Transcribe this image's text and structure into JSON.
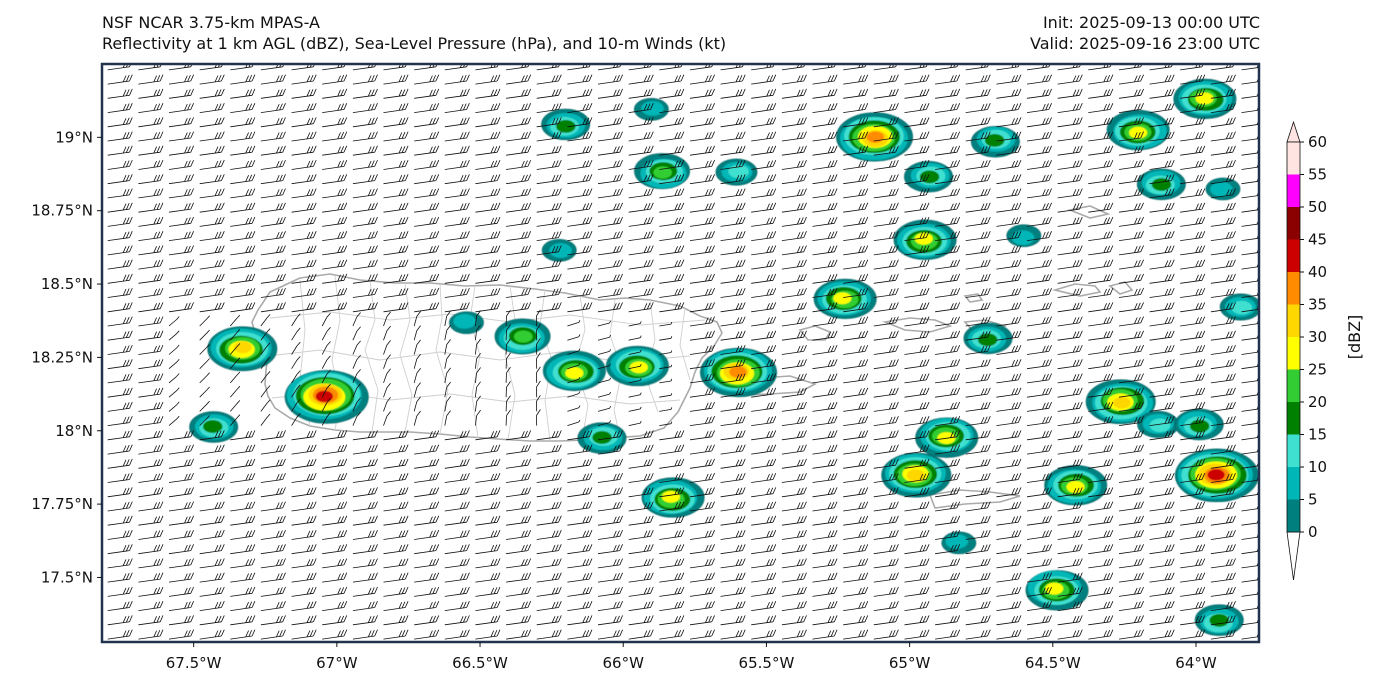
{
  "header": {
    "left_line1": "NSF NCAR 3.75-km MPAS-A",
    "left_line2": "Reflectivity at 1 km AGL (dBZ), Sea-Level Pressure (hPa), and 10-m Winds (kt)",
    "right_line1": "Init: 2025-09-13 00:00 UTC",
    "right_line2": "Valid: 2025-09-16 23:00 UTC"
  },
  "map": {
    "lon_range": [
      -67.82,
      -63.78
    ],
    "lat_range": [
      17.28,
      19.25
    ],
    "lon_ticks": [
      {
        "value": -67.5,
        "label": "67.5°W"
      },
      {
        "value": -67.0,
        "label": "67°W"
      },
      {
        "value": -66.5,
        "label": "66.5°W"
      },
      {
        "value": -66.0,
        "label": "66°W"
      },
      {
        "value": -65.5,
        "label": "65.5°W"
      },
      {
        "value": -65.0,
        "label": "65°W"
      },
      {
        "value": -64.5,
        "label": "64.5°W"
      },
      {
        "value": -64.0,
        "label": "64°W"
      }
    ],
    "lat_ticks": [
      {
        "value": 19.0,
        "label": "19°N"
      },
      {
        "value": 18.75,
        "label": "18.75°N"
      },
      {
        "value": 18.5,
        "label": "18.5°N"
      },
      {
        "value": 18.25,
        "label": "18.25°N"
      },
      {
        "value": 18.0,
        "label": "18°N"
      },
      {
        "value": 17.75,
        "label": "17.75°N"
      },
      {
        "value": 17.5,
        "label": "17.5°N"
      }
    ],
    "wind_barbs": "10-m winds easterly ~15-20 kt, light and variable over western Puerto Rico",
    "coastline_color": "#aaaaaa",
    "echo_cells": [
      {
        "lon": -67.33,
        "lat": 18.28,
        "max": 35
      },
      {
        "lon": -67.43,
        "lat": 18.01,
        "max": 20
      },
      {
        "lon": -67.04,
        "lat": 18.12,
        "max": 45
      },
      {
        "lon": -66.35,
        "lat": 18.32,
        "max": 25
      },
      {
        "lon": -66.55,
        "lat": 18.37,
        "max": 10
      },
      {
        "lon": -66.17,
        "lat": 18.2,
        "max": 30
      },
      {
        "lon": -65.95,
        "lat": 18.22,
        "max": 30
      },
      {
        "lon": -65.6,
        "lat": 18.2,
        "max": 40
      },
      {
        "lon": -66.07,
        "lat": 17.98,
        "max": 20
      },
      {
        "lon": -65.83,
        "lat": 17.77,
        "max": 30
      },
      {
        "lon": -65.86,
        "lat": 18.88,
        "max": 25
      },
      {
        "lon": -65.6,
        "lat": 18.88,
        "max": 15
      },
      {
        "lon": -66.22,
        "lat": 18.61,
        "max": 10
      },
      {
        "lon": -66.2,
        "lat": 19.04,
        "max": 20
      },
      {
        "lon": -65.9,
        "lat": 19.1,
        "max": 10
      },
      {
        "lon": -65.12,
        "lat": 19.0,
        "max": 40
      },
      {
        "lon": -64.93,
        "lat": 18.87,
        "max": 20
      },
      {
        "lon": -64.95,
        "lat": 18.65,
        "max": 30
      },
      {
        "lon": -65.23,
        "lat": 18.45,
        "max": 30
      },
      {
        "lon": -64.7,
        "lat": 18.99,
        "max": 20
      },
      {
        "lon": -64.2,
        "lat": 19.02,
        "max": 30
      },
      {
        "lon": -63.97,
        "lat": 19.13,
        "max": 30
      },
      {
        "lon": -64.12,
        "lat": 18.84,
        "max": 20
      },
      {
        "lon": -63.91,
        "lat": 18.82,
        "max": 10
      },
      {
        "lon": -64.6,
        "lat": 18.66,
        "max": 10
      },
      {
        "lon": -64.73,
        "lat": 18.31,
        "max": 20
      },
      {
        "lon": -64.26,
        "lat": 18.1,
        "max": 35
      },
      {
        "lon": -64.13,
        "lat": 18.02,
        "max": 15
      },
      {
        "lon": -63.93,
        "lat": 17.85,
        "max": 45
      },
      {
        "lon": -63.99,
        "lat": 18.02,
        "max": 20
      },
      {
        "lon": -64.87,
        "lat": 17.98,
        "max": 30
      },
      {
        "lon": -64.98,
        "lat": 17.85,
        "max": 35
      },
      {
        "lon": -64.42,
        "lat": 17.81,
        "max": 30
      },
      {
        "lon": -64.49,
        "lat": 17.46,
        "max": 30
      },
      {
        "lon": -63.92,
        "lat": 17.35,
        "max": 20
      },
      {
        "lon": -64.83,
        "lat": 17.62,
        "max": 10
      },
      {
        "lon": -63.84,
        "lat": 18.42,
        "max": 15
      }
    ]
  },
  "colorbar": {
    "label": "[dBZ]",
    "ticks": [
      "0",
      "5",
      "10",
      "15",
      "20",
      "25",
      "30",
      "35",
      "40",
      "45",
      "50",
      "55",
      "60"
    ],
    "colors": [
      "#007f7f",
      "#00b6b6",
      "#40e0d0",
      "#008000",
      "#32cd32",
      "#ffff00",
      "#ffd700",
      "#ff8c00",
      "#cc0000",
      "#8b0000",
      "#ff00ff",
      "#ffe4e1"
    ]
  }
}
